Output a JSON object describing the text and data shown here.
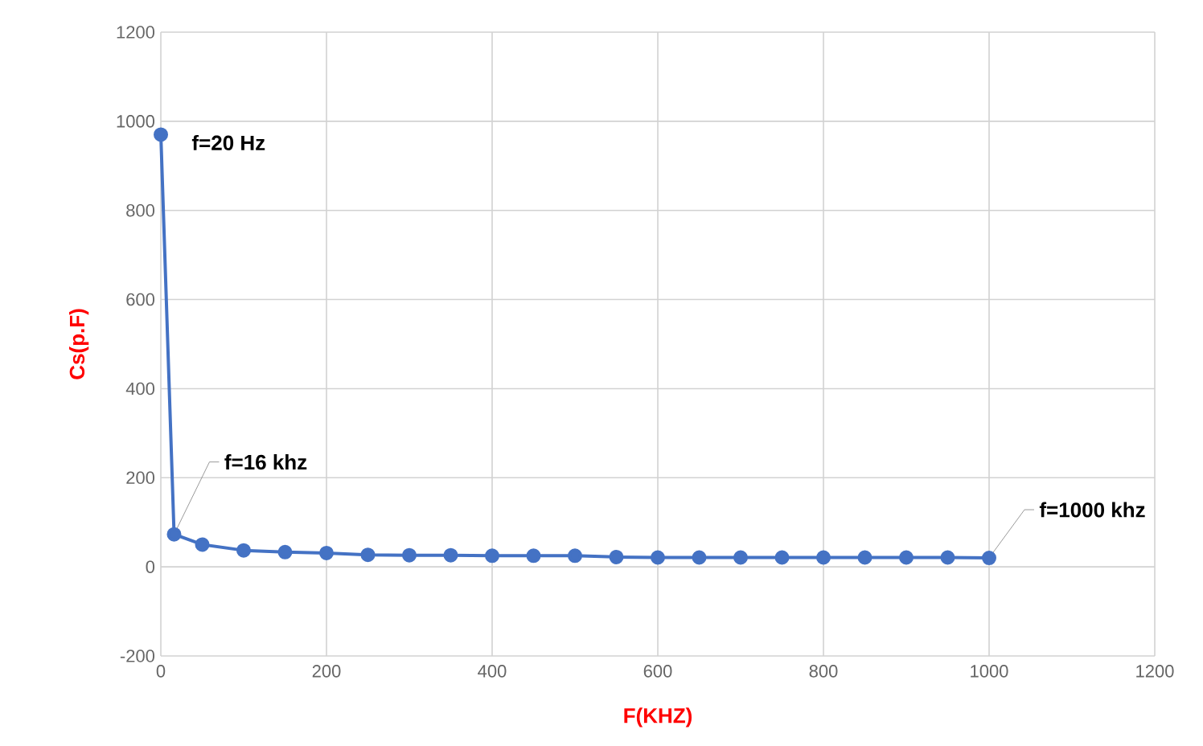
{
  "chart_data": {
    "type": "line",
    "xlabel": "F(KHZ)",
    "ylabel": "Cs(p.F)",
    "x": [
      0.02,
      16,
      50,
      100,
      150,
      200,
      250,
      300,
      350,
      400,
      450,
      500,
      550,
      600,
      650,
      700,
      750,
      800,
      850,
      900,
      950,
      1000
    ],
    "series": [
      {
        "color": "#4472c4",
        "values": [
          970,
          73,
          50,
          37,
          33,
          31,
          27,
          26,
          26,
          25,
          25,
          25,
          22,
          21,
          21,
          21,
          21,
          21,
          21,
          21,
          21,
          20
        ]
      }
    ],
    "xlim": [
      0,
      1200
    ],
    "xticks": [
      0,
      200,
      400,
      600,
      800,
      1000,
      1200
    ],
    "ylim": [
      -200,
      1200
    ],
    "yticks": [
      -200,
      0,
      200,
      400,
      600,
      800,
      1000,
      1200
    ],
    "grid": true,
    "marker": "circle",
    "line_style": "solid",
    "annotations": [
      {
        "text": "f=20 Hz",
        "x": 0.02,
        "y": 970
      },
      {
        "text": "f=16 khz",
        "x": 16,
        "y": 73
      },
      {
        "text": "f=1000 khz",
        "x": 1000,
        "y": 20
      }
    ]
  }
}
